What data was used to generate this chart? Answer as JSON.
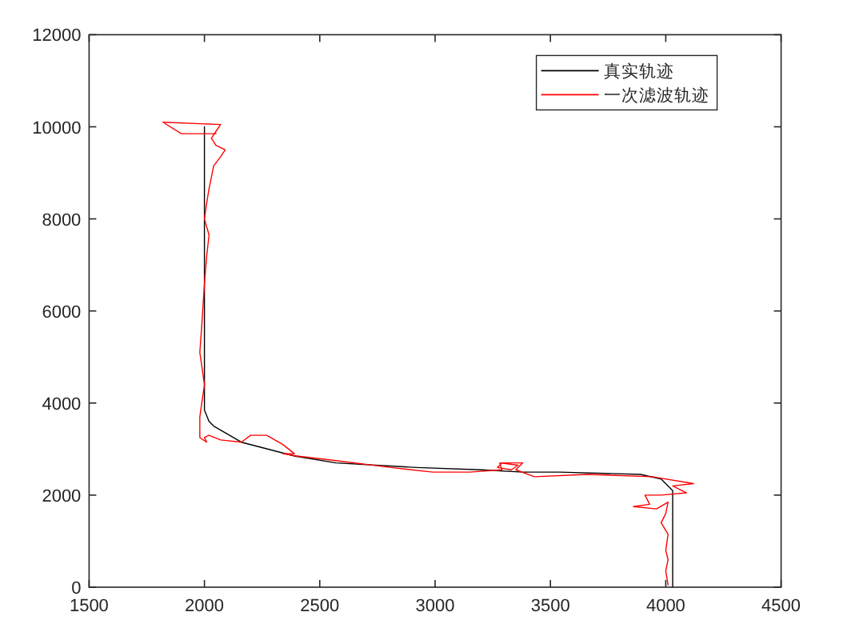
{
  "chart_data": {
    "type": "line",
    "xlim": [
      1500,
      4500
    ],
    "xticks": [
      1500,
      2000,
      2500,
      3000,
      3500,
      4000,
      4500
    ],
    "ylim": [
      0,
      12000
    ],
    "yticks": [
      0,
      2000,
      4000,
      6000,
      8000,
      10000,
      12000
    ],
    "legend": "top right",
    "series": [
      {
        "name": "真实轨迹",
        "color": "#000000",
        "x": [
          2000,
          2000,
          2020,
          2040,
          2160,
          2390,
          2570,
          2920,
          3200,
          3380,
          3540,
          3890,
          3980,
          4030,
          4030
        ],
        "values": [
          10000,
          3850,
          3600,
          3500,
          3150,
          2850,
          2700,
          2600,
          2550,
          2500,
          2500,
          2450,
          2350,
          2100,
          0
        ]
      },
      {
        "name": "一次滤波轨迹",
        "color": "#ff0000",
        "x": [
          2050,
          1900,
          1820,
          2070,
          2050,
          2030,
          2050,
          2090,
          2070,
          2040,
          2020,
          2010,
          2000,
          2020,
          2010,
          2000,
          1990,
          1980,
          2000,
          1980,
          1980,
          2010,
          2000,
          2020,
          2070,
          2160,
          2200,
          2270,
          2340,
          2390,
          2340,
          2400,
          2570,
          2810,
          2990,
          3150,
          3290,
          3280,
          3360,
          3330,
          3270,
          3290,
          3380,
          3350,
          3430,
          3660,
          3940,
          4120,
          4030,
          4090,
          3980,
          3910,
          3930,
          3860,
          3960,
          4010,
          4000,
          3980,
          4010,
          4000,
          4010,
          4000,
          4010
        ],
        "values": [
          9850,
          9850,
          10100,
          10050,
          9900,
          9750,
          9600,
          9500,
          9350,
          9150,
          8650,
          8350,
          8000,
          7650,
          7200,
          6600,
          5800,
          5100,
          4400,
          3700,
          3250,
          3150,
          3250,
          3300,
          3200,
          3150,
          3300,
          3300,
          3100,
          2900,
          2900,
          2850,
          2750,
          2600,
          2500,
          2500,
          2550,
          2700,
          2650,
          2550,
          2600,
          2700,
          2700,
          2550,
          2400,
          2450,
          2400,
          2250,
          2200,
          2050,
          2000,
          2000,
          1800,
          1750,
          1700,
          1850,
          1600,
          1400,
          1150,
          800,
          600,
          350,
          50
        ]
      }
    ]
  }
}
